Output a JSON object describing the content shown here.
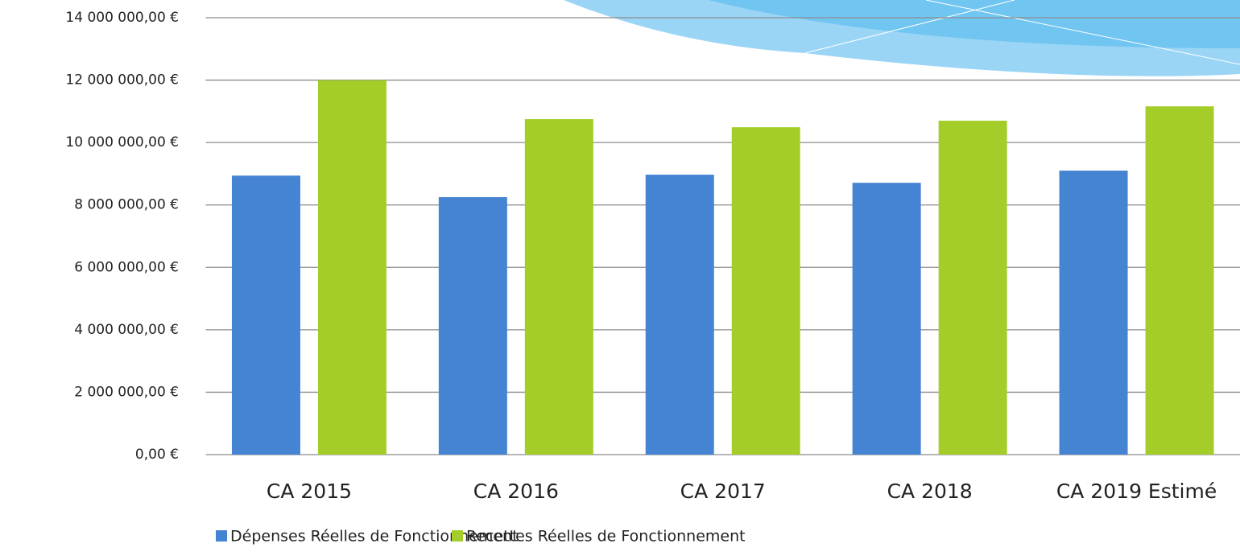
{
  "chart_data": {
    "type": "bar",
    "categories": [
      "CA 2015",
      "CA 2016",
      "CA 2017",
      "CA 2018",
      "CA 2019 Estimé"
    ],
    "series": [
      {
        "name": "Dépenses Réelles de Fonctionnement",
        "color": "#4584d3",
        "values": [
          8940000,
          8250000,
          8970000,
          8710000,
          9100000
        ]
      },
      {
        "name": "Recettes Réelles de Fonctionnement",
        "color": "#a5cd2a",
        "values": [
          12000000,
          10750000,
          10490000,
          10700000,
          11160000
        ]
      }
    ],
    "ylim": [
      0,
      14000000
    ],
    "yticks": [
      {
        "value": 0,
        "label": "0,00 €"
      },
      {
        "value": 2000000,
        "label": "2 000 000,00 €"
      },
      {
        "value": 4000000,
        "label": "4 000 000,00 €"
      },
      {
        "value": 6000000,
        "label": "6 000 000,00 €"
      },
      {
        "value": 8000000,
        "label": "8 000 000,00 €"
      },
      {
        "value": 10000000,
        "label": "10 000 000,00 €"
      },
      {
        "value": 12000000,
        "label": "12 000 000,00 €"
      },
      {
        "value": 14000000,
        "label": "14 000 000,00 €"
      }
    ],
    "grid": true
  }
}
